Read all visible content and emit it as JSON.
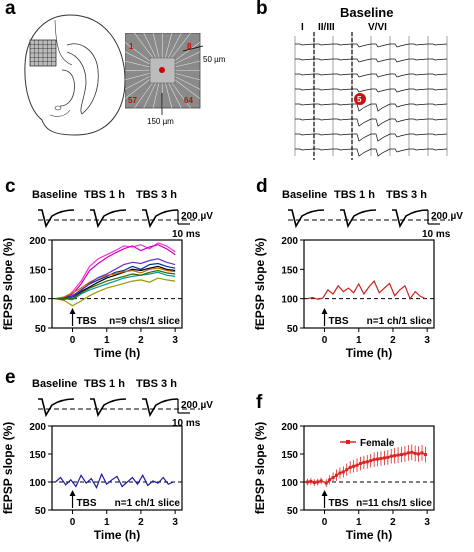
{
  "panels": {
    "a": {
      "label": "a",
      "electrode_labels": [
        "1",
        "8",
        "57",
        "64"
      ],
      "scale_upper": "50 µm",
      "scale_lower": "150 µm"
    },
    "b": {
      "label": "b",
      "title": "Baseline",
      "layers": [
        "I",
        "II/III",
        "V/VI"
      ],
      "marker": "5"
    },
    "c": {
      "label": "c"
    },
    "d": {
      "label": "d"
    },
    "e": {
      "label": "e"
    },
    "f": {
      "label": "f"
    }
  },
  "trace_headers": [
    "Baseline",
    "TBS 1 h",
    "TBS 3 h"
  ],
  "scale_bar": {
    "voltage": "200 µV",
    "time": "10 ms"
  },
  "chart_data": [
    {
      "panel": "c",
      "type": "line",
      "ylabel": "fEPSP slope (%)",
      "xlabel": "Time (h)",
      "xlim": [
        -0.6,
        3.2
      ],
      "ylim": [
        50,
        200
      ],
      "yticks": [
        50,
        100,
        150,
        200
      ],
      "xticks": [
        0,
        1,
        2,
        3
      ],
      "reference_line": 100,
      "annotation_arrow": "TBS",
      "annotation_n": "n=9 chs/1 slice",
      "series": [
        {
          "color": "#ff33cc",
          "x": [
            -0.5,
            -0.25,
            0,
            0.25,
            0.5,
            0.75,
            1,
            1.25,
            1.5,
            1.75,
            2,
            2.25,
            2.5,
            2.75,
            3
          ],
          "values": [
            100,
            98,
            112,
            130,
            155,
            168,
            175,
            182,
            190,
            188,
            192,
            185,
            195,
            190,
            180
          ]
        },
        {
          "color": "#cc00cc",
          "x": [
            -0.5,
            -0.25,
            0,
            0.25,
            0.5,
            0.75,
            1,
            1.25,
            1.5,
            1.75,
            2,
            2.25,
            2.5,
            2.75,
            3
          ],
          "values": [
            100,
            102,
            108,
            125,
            148,
            160,
            170,
            178,
            185,
            190,
            182,
            188,
            192,
            185,
            175
          ]
        },
        {
          "color": "#000000",
          "x": [
            -0.5,
            -0.25,
            0,
            0.25,
            0.5,
            0.75,
            1,
            1.25,
            1.5,
            1.75,
            2,
            2.25,
            2.5,
            2.75,
            3
          ],
          "values": [
            100,
            99,
            103,
            112,
            120,
            128,
            135,
            140,
            145,
            150,
            148,
            152,
            155,
            150,
            148
          ]
        },
        {
          "color": "#003399",
          "x": [
            -0.5,
            -0.25,
            0,
            0.25,
            0.5,
            0.75,
            1,
            1.25,
            1.5,
            1.75,
            2,
            2.25,
            2.5,
            2.75,
            3
          ],
          "values": [
            100,
            101,
            105,
            115,
            125,
            132,
            138,
            145,
            148,
            155,
            150,
            158,
            160,
            155,
            152
          ]
        },
        {
          "color": "#009999",
          "x": [
            -0.5,
            -0.25,
            0,
            0.25,
            0.5,
            0.75,
            1,
            1.25,
            1.5,
            1.75,
            2,
            2.25,
            2.5,
            2.75,
            3
          ],
          "values": [
            100,
            100,
            98,
            108,
            115,
            120,
            125,
            130,
            135,
            138,
            140,
            142,
            145,
            140,
            138
          ]
        },
        {
          "color": "#999900",
          "x": [
            -0.5,
            -0.25,
            0,
            0.25,
            0.5,
            0.75,
            1,
            1.25,
            1.5,
            1.75,
            2,
            2.25,
            2.5,
            2.75,
            3
          ],
          "values": [
            100,
            97,
            88,
            96,
            105,
            112,
            118,
            122,
            126,
            130,
            132,
            128,
            135,
            132,
            130
          ]
        },
        {
          "color": "#cc6600",
          "x": [
            -0.5,
            -0.25,
            0,
            0.25,
            0.5,
            0.75,
            1,
            1.25,
            1.5,
            1.75,
            2,
            2.25,
            2.5,
            2.75,
            3
          ],
          "values": [
            100,
            103,
            110,
            118,
            128,
            135,
            140,
            142,
            146,
            148,
            144,
            150,
            152,
            148,
            146
          ]
        },
        {
          "color": "#6633cc",
          "x": [
            -0.5,
            -0.25,
            0,
            0.25,
            0.5,
            0.75,
            1,
            1.25,
            1.5,
            1.75,
            2,
            2.25,
            2.5,
            2.75,
            3
          ],
          "values": [
            100,
            98,
            104,
            114,
            126,
            136,
            142,
            150,
            158,
            162,
            160,
            165,
            168,
            162,
            158
          ]
        },
        {
          "color": "#336600",
          "x": [
            -0.5,
            -0.25,
            0,
            0.25,
            0.5,
            0.75,
            1,
            1.25,
            1.5,
            1.75,
            2,
            2.25,
            2.5,
            2.75,
            3
          ],
          "values": [
            100,
            101,
            100,
            110,
            118,
            124,
            130,
            134,
            138,
            142,
            140,
            145,
            148,
            144,
            142
          ]
        }
      ]
    },
    {
      "panel": "d",
      "type": "line",
      "ylabel": "fEPSP slope (%)",
      "xlabel": "Time (h)",
      "xlim": [
        -0.6,
        3.2
      ],
      "ylim": [
        50,
        200
      ],
      "yticks": [
        50,
        100,
        150,
        200
      ],
      "xticks": [
        0,
        1,
        2,
        3
      ],
      "reference_line": 100,
      "annotation_arrow": "TBS",
      "annotation_n": "n=1 ch/1 slice",
      "series": [
        {
          "color": "#cc2222",
          "x": [
            -0.5,
            -0.35,
            -0.2,
            -0.05,
            0.1,
            0.25,
            0.4,
            0.55,
            0.7,
            0.85,
            1,
            1.15,
            1.3,
            1.45,
            1.6,
            1.75,
            1.9,
            2.05,
            2.2,
            2.35,
            2.5,
            2.65,
            2.8,
            2.95
          ],
          "values": [
            100,
            102,
            99,
            101,
            115,
            108,
            122,
            112,
            118,
            110,
            125,
            108,
            120,
            130,
            110,
            118,
            126,
            105,
            115,
            122,
            100,
            112,
            104,
            100
          ]
        }
      ]
    },
    {
      "panel": "e",
      "type": "line",
      "ylabel": "fEPSP slope (%)",
      "xlabel": "Time (h)",
      "xlim": [
        -0.6,
        3.2
      ],
      "ylim": [
        50,
        200
      ],
      "yticks": [
        50,
        100,
        150,
        200
      ],
      "xticks": [
        0,
        1,
        2,
        3
      ],
      "reference_line": 100,
      "annotation_arrow": "TBS",
      "annotation_n": "n=1 ch/1 slice",
      "series": [
        {
          "color": "#1a1aa6",
          "x": [
            -0.5,
            -0.35,
            -0.2,
            -0.05,
            0.1,
            0.25,
            0.4,
            0.55,
            0.7,
            0.85,
            1,
            1.15,
            1.3,
            1.45,
            1.6,
            1.75,
            1.9,
            2.05,
            2.2,
            2.35,
            2.5,
            2.65,
            2.8,
            2.95
          ],
          "values": [
            100,
            108,
            95,
            104,
            92,
            112,
            98,
            106,
            90,
            114,
            96,
            104,
            110,
            92,
            100,
            108,
            96,
            112,
            94,
            102,
            98,
            108,
            96,
            100
          ]
        }
      ]
    },
    {
      "panel": "f",
      "type": "line",
      "ylabel": "fEPSP slope (%)",
      "xlabel": "Time (h)",
      "xlim": [
        -0.6,
        3.2
      ],
      "ylim": [
        50,
        200
      ],
      "yticks": [
        50,
        100,
        150,
        200
      ],
      "xticks": [
        0,
        1,
        2,
        3
      ],
      "reference_line": 100,
      "annotation_arrow": "TBS",
      "annotation_n": "n=11 chs/1 slice",
      "legend": "Female",
      "series": [
        {
          "name": "Female",
          "color": "#dd2222",
          "errorbars": true,
          "x": [
            -0.5,
            -0.4,
            -0.3,
            -0.2,
            -0.1,
            0.05,
            0.15,
            0.25,
            0.35,
            0.45,
            0.55,
            0.65,
            0.75,
            0.85,
            0.95,
            1.05,
            1.15,
            1.25,
            1.35,
            1.45,
            1.55,
            1.65,
            1.75,
            1.85,
            1.95,
            2.05,
            2.15,
            2.25,
            2.35,
            2.45,
            2.55,
            2.65,
            2.75,
            2.85,
            2.95
          ],
          "values": [
            100,
            101,
            99,
            100,
            102,
            98,
            104,
            108,
            112,
            116,
            118,
            122,
            126,
            128,
            130,
            133,
            135,
            136,
            138,
            140,
            141,
            142,
            143,
            144,
            146,
            147,
            148,
            149,
            150,
            152,
            153,
            151,
            150,
            152,
            149
          ],
          "errors": [
            6,
            6,
            6,
            6,
            6,
            7,
            8,
            9,
            10,
            10,
            10,
            11,
            11,
            11,
            12,
            12,
            12,
            12,
            12,
            13,
            13,
            13,
            13,
            13,
            13,
            14,
            14,
            14,
            14,
            14,
            14,
            14,
            14,
            14,
            14
          ]
        }
      ]
    }
  ]
}
